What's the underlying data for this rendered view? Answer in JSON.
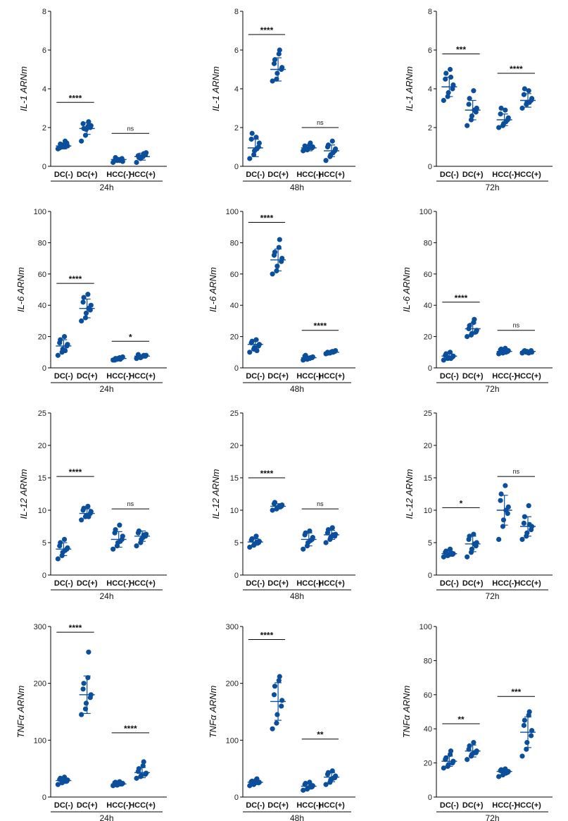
{
  "figure": {
    "point_color": "#0b4f9c",
    "axis_color": "#000000",
    "panel_time_labels": [
      "24h",
      "48h",
      "72h"
    ]
  },
  "chart_data": [
    {
      "type": "scatter",
      "ylabel": "IL-1 ARNm",
      "time": "24h",
      "ylim": [
        0,
        8
      ],
      "yticks": [
        0,
        2,
        4,
        6,
        8
      ],
      "categories": [
        "DC(-)",
        "DC(+)",
        "HCC(-)",
        "HCC(+)"
      ],
      "series": [
        {
          "name": "DC(-)",
          "values": [
            0.9,
            1.0,
            1.1,
            1.2,
            1.05,
            0.95,
            1.15,
            1.0,
            1.3
          ],
          "mean": 1.05,
          "sd": 0.15
        },
        {
          "name": "DC(+)",
          "values": [
            1.3,
            1.6,
            1.9,
            2.0,
            2.1,
            2.2,
            1.95,
            2.05,
            2.3
          ],
          "mean": 1.95,
          "sd": 0.3
        },
        {
          "name": "HCC(-)",
          "values": [
            0.2,
            0.3,
            0.35,
            0.4,
            0.25,
            0.3,
            0.45,
            0.3,
            0.35
          ],
          "mean": 0.35,
          "sd": 0.1
        },
        {
          "name": "HCC(+)",
          "values": [
            0.2,
            0.4,
            0.5,
            0.6,
            0.7,
            0.55,
            0.45,
            0.5,
            0.65
          ],
          "mean": 0.5,
          "sd": 0.18
        }
      ],
      "significance": [
        {
          "label": "****",
          "y": 3.3
        },
        {
          "label": "ns",
          "y": 1.7
        }
      ]
    },
    {
      "type": "scatter",
      "ylabel": "IL-1 ARNm",
      "time": "48h",
      "ylim": [
        0,
        8
      ],
      "yticks": [
        0,
        2,
        4,
        6,
        8
      ],
      "categories": [
        "DC(-)",
        "DC(+)",
        "HCC(-)",
        "HCC(+)"
      ],
      "series": [
        {
          "name": "DC(-)",
          "values": [
            0.4,
            0.6,
            0.8,
            1.0,
            1.2,
            1.4,
            1.7,
            1.5,
            0.9
          ],
          "mean": 0.95,
          "sd": 0.45
        },
        {
          "name": "DC(+)",
          "values": [
            4.4,
            4.5,
            4.8,
            5.0,
            5.1,
            5.3,
            5.5,
            5.8,
            6.0
          ],
          "mean": 5.0,
          "sd": 0.6
        },
        {
          "name": "HCC(-)",
          "values": [
            0.8,
            0.85,
            0.9,
            0.95,
            1.0,
            1.05,
            0.9,
            1.1,
            1.2
          ],
          "mean": 0.95,
          "sd": 0.15
        },
        {
          "name": "HCC(+)",
          "values": [
            0.3,
            0.5,
            0.6,
            0.8,
            0.9,
            1.0,
            1.1,
            1.3,
            0.7
          ],
          "mean": 0.8,
          "sd": 0.3
        }
      ],
      "significance": [
        {
          "label": "****",
          "y": 6.8
        },
        {
          "label": "ns",
          "y": 2.0
        }
      ]
    },
    {
      "type": "scatter",
      "ylabel": "IL-1 ARNm",
      "time": "72h",
      "ylim": [
        0,
        8
      ],
      "yticks": [
        0,
        2,
        4,
        6,
        8
      ],
      "categories": [
        "DC(-)",
        "DC(+)",
        "HCC(-)",
        "HCC(+)"
      ],
      "series": [
        {
          "name": "DC(-)",
          "values": [
            3.4,
            3.6,
            3.8,
            4.0,
            4.2,
            4.5,
            4.8,
            5.0,
            4.6
          ],
          "mean": 4.1,
          "sd": 0.5
        },
        {
          "name": "DC(+)",
          "values": [
            2.1,
            2.4,
            2.6,
            2.8,
            3.0,
            3.2,
            3.5,
            3.9,
            2.9
          ],
          "mean": 2.9,
          "sd": 0.5
        },
        {
          "name": "HCC(-)",
          "values": [
            2.0,
            2.1,
            2.2,
            2.4,
            2.5,
            2.7,
            3.0,
            2.9,
            2.3
          ],
          "mean": 2.4,
          "sd": 0.3
        },
        {
          "name": "HCC(+)",
          "values": [
            3.0,
            3.2,
            3.3,
            3.4,
            3.5,
            3.7,
            4.0,
            3.9,
            3.3
          ],
          "mean": 3.4,
          "sd": 0.35
        }
      ],
      "significance": [
        {
          "label": "***",
          "y": 5.8
        },
        {
          "label": "****",
          "y": 4.8
        }
      ]
    },
    {
      "type": "scatter",
      "ylabel": "IL-6 ARNm",
      "time": "24h",
      "ylim": [
        0,
        100
      ],
      "yticks": [
        0,
        20,
        40,
        60,
        80,
        100
      ],
      "categories": [
        "DC(-)",
        "DC(+)",
        "HCC(-)",
        "HCC(+)"
      ],
      "series": [
        {
          "name": "DC(-)",
          "values": [
            8,
            10,
            12,
            14,
            15,
            16,
            18,
            20,
            11
          ],
          "mean": 14,
          "sd": 4
        },
        {
          "name": "DC(+)",
          "values": [
            30,
            32,
            35,
            37,
            40,
            42,
            45,
            47,
            38
          ],
          "mean": 38,
          "sd": 6
        },
        {
          "name": "HCC(-)",
          "values": [
            5,
            5.5,
            6,
            6.5,
            7,
            5,
            6,
            6.5,
            5.5
          ],
          "mean": 6,
          "sd": 0.8
        },
        {
          "name": "HCC(+)",
          "values": [
            6,
            6.5,
            7,
            7.5,
            8,
            8.5,
            7,
            7.5,
            8
          ],
          "mean": 7.5,
          "sd": 0.8
        }
      ],
      "significance": [
        {
          "label": "****",
          "y": 54
        },
        {
          "label": "*",
          "y": 17
        }
      ]
    },
    {
      "type": "scatter",
      "ylabel": "IL-6 ARNm",
      "time": "48h",
      "ylim": [
        0,
        100
      ],
      "yticks": [
        0,
        20,
        40,
        60,
        80,
        100
      ],
      "categories": [
        "DC(-)",
        "DC(+)",
        "HCC(-)",
        "HCC(+)"
      ],
      "series": [
        {
          "name": "DC(-)",
          "values": [
            10,
            12,
            13,
            14,
            15,
            16,
            17,
            18,
            11
          ],
          "mean": 15,
          "sd": 3
        },
        {
          "name": "DC(+)",
          "values": [
            60,
            62,
            65,
            68,
            70,
            72,
            74,
            77,
            82
          ],
          "mean": 69,
          "sd": 7
        },
        {
          "name": "HCC(-)",
          "values": [
            5,
            5.5,
            6,
            6.5,
            7,
            7.5,
            8,
            6,
            6.5
          ],
          "mean": 6.5,
          "sd": 1
        },
        {
          "name": "HCC(+)",
          "values": [
            9,
            9.5,
            10,
            10.5,
            11,
            10,
            9.5,
            10.5,
            10
          ],
          "mean": 10,
          "sd": 0.6
        }
      ],
      "significance": [
        {
          "label": "****",
          "y": 93
        },
        {
          "label": "****",
          "y": 24
        }
      ]
    },
    {
      "type": "scatter",
      "ylabel": "IL-6 ARNm",
      "time": "72h",
      "ylim": [
        0,
        100
      ],
      "yticks": [
        0,
        20,
        40,
        60,
        80,
        100
      ],
      "categories": [
        "DC(-)",
        "DC(+)",
        "HCC(-)",
        "HCC(+)"
      ],
      "series": [
        {
          "name": "DC(-)",
          "values": [
            5,
            6,
            6.5,
            7,
            7.5,
            8,
            9,
            10,
            6
          ],
          "mean": 7.5,
          "sd": 1.5
        },
        {
          "name": "DC(+)",
          "values": [
            20,
            21,
            22,
            23,
            24,
            25,
            27,
            29,
            31
          ],
          "mean": 25,
          "sd": 3.5
        },
        {
          "name": "HCC(-)",
          "values": [
            9,
            9.5,
            10,
            10.5,
            11,
            11.5,
            12,
            12.5,
            10
          ],
          "mean": 10.5,
          "sd": 1.2
        },
        {
          "name": "HCC(+)",
          "values": [
            9.5,
            10,
            10.5,
            11,
            10,
            10.5,
            11,
            9.5,
            10
          ],
          "mean": 10.5,
          "sd": 0.6
        }
      ],
      "significance": [
        {
          "label": "****",
          "y": 42
        },
        {
          "label": "ns",
          "y": 24
        }
      ]
    },
    {
      "type": "scatter",
      "ylabel": "IL-12 ARNm",
      "time": "24h",
      "ylim": [
        0,
        25
      ],
      "yticks": [
        0,
        5,
        10,
        15,
        20,
        25
      ],
      "categories": [
        "DC(-)",
        "DC(+)",
        "HCC(-)",
        "HCC(+)"
      ],
      "series": [
        {
          "name": "DC(-)",
          "values": [
            2.5,
            3.0,
            3.5,
            4.0,
            4.2,
            4.5,
            5.0,
            5.5,
            3.8
          ],
          "mean": 4.0,
          "sd": 1.0
        },
        {
          "name": "DC(+)",
          "values": [
            8.5,
            9.0,
            9.2,
            9.5,
            9.8,
            10.0,
            10.3,
            10.6,
            9.0
          ],
          "mean": 9.5,
          "sd": 0.7
        },
        {
          "name": "HCC(-)",
          "values": [
            4.0,
            4.5,
            5.0,
            5.5,
            6.0,
            6.5,
            7.0,
            7.7,
            5.2
          ],
          "mean": 5.5,
          "sd": 1.2
        },
        {
          "name": "HCC(+)",
          "values": [
            4.5,
            5.0,
            5.5,
            6.0,
            6.3,
            6.5,
            6.8,
            5.8,
            6.2
          ],
          "mean": 6.0,
          "sd": 0.8
        }
      ],
      "significance": [
        {
          "label": "****",
          "y": 15.2
        },
        {
          "label": "ns",
          "y": 10.2
        }
      ]
    },
    {
      "type": "scatter",
      "ylabel": "IL-12 ARNm",
      "time": "48h",
      "ylim": [
        0,
        25
      ],
      "yticks": [
        0,
        5,
        10,
        15,
        20,
        25
      ],
      "categories": [
        "DC(-)",
        "DC(+)",
        "HCC(-)",
        "HCC(+)"
      ],
      "series": [
        {
          "name": "DC(-)",
          "values": [
            4.3,
            4.6,
            4.8,
            5.0,
            5.2,
            5.4,
            5.6,
            6.0,
            5.1
          ],
          "mean": 5.1,
          "sd": 0.5
        },
        {
          "name": "DC(+)",
          "values": [
            10.0,
            10.2,
            10.4,
            10.6,
            10.8,
            11.0,
            11.2,
            10.5,
            10.7
          ],
          "mean": 10.6,
          "sd": 0.4
        },
        {
          "name": "HCC(-)",
          "values": [
            4.0,
            4.5,
            5.0,
            5.5,
            5.8,
            6.2,
            6.5,
            6.8,
            5.3
          ],
          "mean": 5.5,
          "sd": 1.0
        },
        {
          "name": "HCC(+)",
          "values": [
            5.0,
            5.5,
            5.8,
            6.0,
            6.3,
            6.5,
            7.0,
            7.3,
            6.2
          ],
          "mean": 6.2,
          "sd": 0.7
        }
      ],
      "significance": [
        {
          "label": "****",
          "y": 15.0
        },
        {
          "label": "ns",
          "y": 10.2
        }
      ]
    },
    {
      "type": "scatter",
      "ylabel": "IL-12 ARNm",
      "time": "72h",
      "ylim": [
        0,
        25
      ],
      "yticks": [
        0,
        5,
        10,
        15,
        20,
        25
      ],
      "categories": [
        "DC(-)",
        "DC(+)",
        "HCC(-)",
        "HCC(+)"
      ],
      "series": [
        {
          "name": "DC(-)",
          "values": [
            2.8,
            3.0,
            3.1,
            3.2,
            3.3,
            3.5,
            3.7,
            4.0,
            3.4
          ],
          "mean": 3.3,
          "sd": 0.4
        },
        {
          "name": "DC(+)",
          "values": [
            2.8,
            3.5,
            4.0,
            4.5,
            5.0,
            5.5,
            6.0,
            6.3,
            4.8
          ],
          "mean": 4.8,
          "sd": 1.2
        },
        {
          "name": "HCC(-)",
          "values": [
            5.5,
            7.5,
            8.5,
            9.5,
            10.5,
            11.5,
            12.5,
            13.8,
            10.0
          ],
          "mean": 10.0,
          "sd": 2.3
        },
        {
          "name": "HCC(+)",
          "values": [
            5.5,
            6.0,
            6.5,
            7.0,
            7.5,
            8.0,
            9.0,
            10.7,
            7.8
          ],
          "mean": 7.5,
          "sd": 1.5
        }
      ],
      "significance": [
        {
          "label": "*",
          "y": 10.4
        },
        {
          "label": "ns",
          "y": 15.2
        }
      ]
    },
    {
      "type": "scatter",
      "ylabel": "TNFα ARNm",
      "time": "24h",
      "ylim": [
        0,
        300
      ],
      "yticks": [
        0,
        100,
        200,
        300
      ],
      "categories": [
        "DC(-)",
        "DC(+)",
        "HCC(-)",
        "HCC(+)"
      ],
      "series": [
        {
          "name": "DC(-)",
          "values": [
            22,
            25,
            27,
            28,
            30,
            31,
            33,
            35,
            29
          ],
          "mean": 29,
          "sd": 5
        },
        {
          "name": "DC(+)",
          "values": [
            145,
            155,
            165,
            175,
            180,
            190,
            200,
            210,
            255
          ],
          "mean": 180,
          "sd": 33
        },
        {
          "name": "HCC(-)",
          "values": [
            20,
            21,
            22,
            23,
            24,
            25,
            26,
            27,
            23
          ],
          "mean": 23,
          "sd": 2.5
        },
        {
          "name": "HCC(+)",
          "values": [
            33,
            36,
            38,
            40,
            42,
            45,
            50,
            55,
            62
          ],
          "mean": 43,
          "sd": 9
        }
      ],
      "significance": [
        {
          "label": "****",
          "y": 290
        },
        {
          "label": "****",
          "y": 113
        }
      ]
    },
    {
      "type": "scatter",
      "ylabel": "TNFα ARNm",
      "time": "48h",
      "ylim": [
        0,
        300
      ],
      "yticks": [
        0,
        100,
        200,
        300
      ],
      "categories": [
        "DC(-)",
        "DC(+)",
        "HCC(-)",
        "HCC(+)"
      ],
      "series": [
        {
          "name": "DC(-)",
          "values": [
            20,
            22,
            24,
            25,
            26,
            27,
            28,
            30,
            32
          ],
          "mean": 26,
          "sd": 4
        },
        {
          "name": "DC(+)",
          "values": [
            120,
            130,
            145,
            160,
            170,
            180,
            195,
            205,
            212
          ],
          "mean": 168,
          "sd": 33
        },
        {
          "name": "HCC(-)",
          "values": [
            12,
            14,
            16,
            18,
            20,
            22,
            24,
            26,
            18
          ],
          "mean": 19,
          "sd": 5
        },
        {
          "name": "HCC(+)",
          "values": [
            22,
            26,
            30,
            34,
            37,
            40,
            43,
            46,
            33
          ],
          "mean": 35,
          "sd": 8
        }
      ],
      "significance": [
        {
          "label": "****",
          "y": 277
        },
        {
          "label": "**",
          "y": 102
        }
      ]
    },
    {
      "type": "scatter",
      "ylabel": "TNFα ARNm",
      "time": "72h",
      "ylim": [
        0,
        100
      ],
      "yticks": [
        0,
        20,
        40,
        60,
        80,
        100
      ],
      "categories": [
        "DC(-)",
        "DC(+)",
        "HCC(-)",
        "HCC(+)"
      ],
      "series": [
        {
          "name": "DC(-)",
          "values": [
            17,
            18,
            19,
            20,
            21,
            22,
            23,
            25,
            27
          ],
          "mean": 21,
          "sd": 3
        },
        {
          "name": "DC(+)",
          "values": [
            22,
            24,
            25,
            26,
            27,
            28,
            30,
            32,
            26
          ],
          "mean": 27,
          "sd": 3.5
        },
        {
          "name": "HCC(-)",
          "values": [
            12,
            13,
            14,
            14.5,
            15,
            15.5,
            16,
            16.5,
            14
          ],
          "mean": 15,
          "sd": 1.3
        },
        {
          "name": "HCC(+)",
          "values": [
            24,
            28,
            32,
            36,
            39,
            42,
            45,
            48,
            50
          ],
          "mean": 38,
          "sd": 9
        }
      ],
      "significance": [
        {
          "label": "**",
          "y": 43
        },
        {
          "label": "***",
          "y": 59
        }
      ]
    }
  ]
}
